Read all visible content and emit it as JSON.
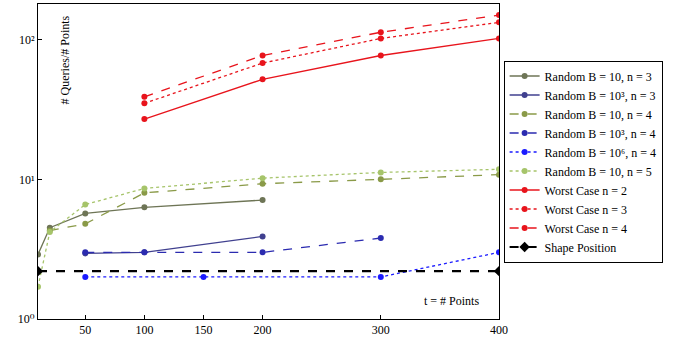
{
  "chart_data": {
    "type": "line",
    "xlabel": "t = # Points",
    "ylabel": "# Queries/# Points",
    "log": "y",
    "grid": false,
    "legend": "right",
    "xlim": [
      10,
      400
    ],
    "xticks": [
      50,
      100,
      150,
      200,
      300,
      400
    ],
    "ylim": [
      1,
      180
    ],
    "yticks": [
      {
        "value": 1,
        "label": "10⁰"
      },
      {
        "value": 10,
        "label": "10¹"
      },
      {
        "value": 100,
        "label": "10²"
      }
    ],
    "series": [
      {
        "name": "Random B = 10, n = 3",
        "color": "#6e7556",
        "line_style": "solid",
        "marker": "circle",
        "x": [
          10,
          20,
          50,
          100,
          200
        ],
        "values": [
          2.9,
          4.5,
          5.7,
          6.3,
          7.1
        ]
      },
      {
        "name": "Random B = 10³, n = 3",
        "color": "#40408f",
        "line_style": "solid",
        "marker": "circle",
        "x": [
          50,
          100,
          200
        ],
        "values": [
          2.95,
          3.0,
          3.9
        ]
      },
      {
        "name": "Random B = 10, n = 4",
        "color": "#8a9a48",
        "line_style": "dash",
        "marker": "circle",
        "x": [
          20,
          50,
          100,
          200,
          300,
          400
        ],
        "values": [
          4.3,
          4.8,
          8.0,
          9.3,
          10.0,
          10.8
        ]
      },
      {
        "name": "Random B = 10³, n = 4",
        "color": "#2b2bb0",
        "line_style": "dash",
        "marker": "circle",
        "x": [
          50,
          100,
          200,
          300
        ],
        "values": [
          3.0,
          3.0,
          3.0,
          3.8
        ]
      },
      {
        "name": "Random B = 10⁶, n = 4",
        "color": "#1a1aff",
        "line_style": "dot",
        "marker": "circle",
        "x": [
          50,
          150,
          300,
          400
        ],
        "values": [
          2.0,
          2.0,
          2.0,
          3.0
        ]
      },
      {
        "name": "Random B = 10, n = 5",
        "color": "#a6c46a",
        "line_style": "dot",
        "marker": "circle",
        "x": [
          10,
          20,
          50,
          100,
          200,
          300,
          400
        ],
        "values": [
          1.7,
          4.2,
          6.6,
          8.6,
          10.2,
          11.2,
          11.8
        ]
      },
      {
        "name": "Worst Case n = 2",
        "color": "#e8141c",
        "line_style": "solid",
        "marker": "circle",
        "x": [
          100,
          200,
          300,
          400
        ],
        "values": [
          27,
          52,
          77,
          102
        ]
      },
      {
        "name": "Worst Case n = 3",
        "color": "#e8141c",
        "line_style": "dot",
        "marker": "circle",
        "x": [
          100,
          200,
          300,
          400
        ],
        "values": [
          35,
          68,
          102,
          133
        ]
      },
      {
        "name": "Worst Case n = 4",
        "color": "#e8141c",
        "line_style": "dash",
        "marker": "circle",
        "x": [
          100,
          200,
          300,
          400
        ],
        "values": [
          39,
          77,
          113,
          150
        ]
      },
      {
        "name": "Shape Position",
        "color": "#000000",
        "line_style": "dash",
        "marker": "diamond",
        "x": [
          10,
          400
        ],
        "values": [
          2.2,
          2.2
        ]
      }
    ]
  }
}
